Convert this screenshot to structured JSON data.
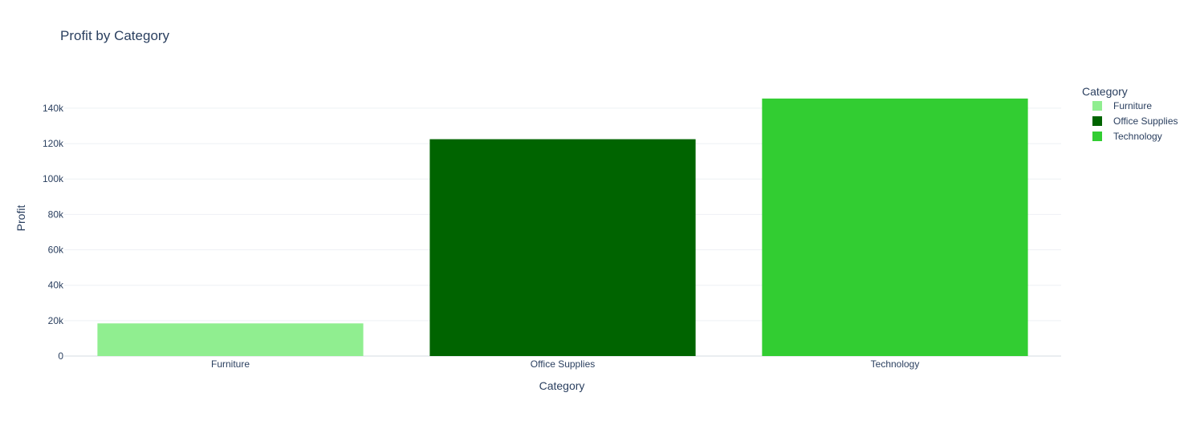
{
  "chart_data": {
    "type": "bar",
    "title": "Profit by Category",
    "xlabel": "Category",
    "ylabel": "Profit",
    "categories": [
      "Furniture",
      "Office Supplies",
      "Technology"
    ],
    "values": [
      18451,
      122491,
      145455
    ],
    "colors": [
      "#90ee90",
      "#006400",
      "#32cd32"
    ],
    "ylim": [
      0,
      153100
    ],
    "yticks": [
      0,
      20000,
      40000,
      60000,
      80000,
      100000,
      120000,
      140000
    ],
    "ytick_labels": [
      "0",
      "20k",
      "40k",
      "60k",
      "80k",
      "100k",
      "120k",
      "140k"
    ],
    "grid": true,
    "legend": {
      "title": "Category",
      "position": "right",
      "items": [
        "Furniture",
        "Office Supplies",
        "Technology"
      ]
    }
  }
}
